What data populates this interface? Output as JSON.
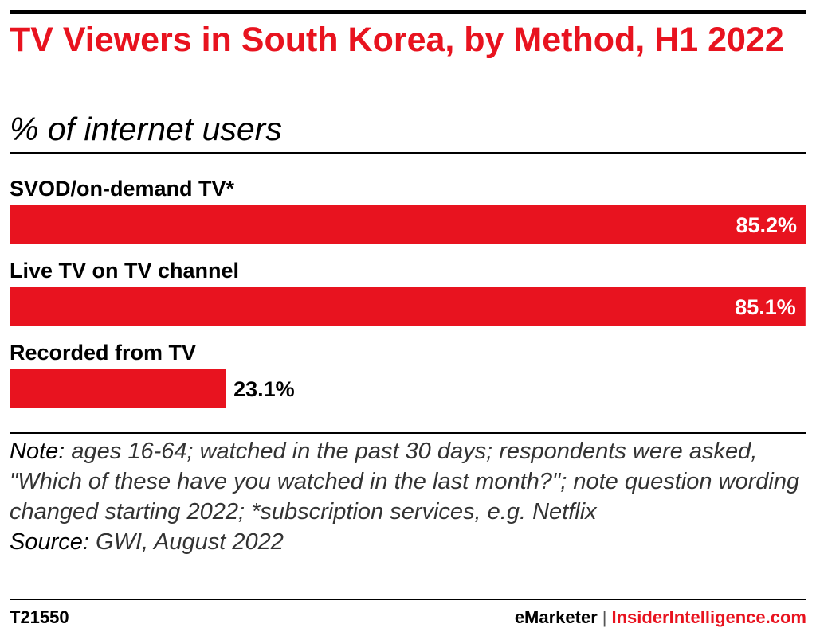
{
  "header": {
    "title": "TV Viewers in South Korea, by Method, H1 2022",
    "subtitle": "% of internet users"
  },
  "chart_data": {
    "type": "bar",
    "orientation": "horizontal",
    "title": "TV Viewers in South Korea, by Method, H1 2022",
    "subtitle": "% of internet users",
    "categories": [
      "SVOD/on-demand TV*",
      "Live TV on TV channel",
      "Recorded from TV"
    ],
    "values": [
      85.2,
      85.1,
      23.1
    ],
    "value_labels": [
      "85.2%",
      "85.1%",
      "23.1%"
    ],
    "xlim": [
      0,
      85.2
    ],
    "grid": false,
    "legend": "none",
    "bar_color": "#e8131f"
  },
  "note": {
    "note_label": "Note:",
    "note_text": " ages 16-64; watched in the past 30 days; respondents were asked, \"Which of these have you watched in the last month?\"; note question wording changed starting 2022; *subscription services, e.g. Netflix",
    "source_label": "Source:",
    "source_text": " GWI, August 2022"
  },
  "footer": {
    "chart_id": "T21550",
    "brand_1": "eMarketer",
    "separator": "|",
    "brand_2": "InsiderIntelligence.com"
  },
  "colors": {
    "accent": "#e8131f",
    "text": "#000000",
    "value_inside": "#ffffff"
  }
}
